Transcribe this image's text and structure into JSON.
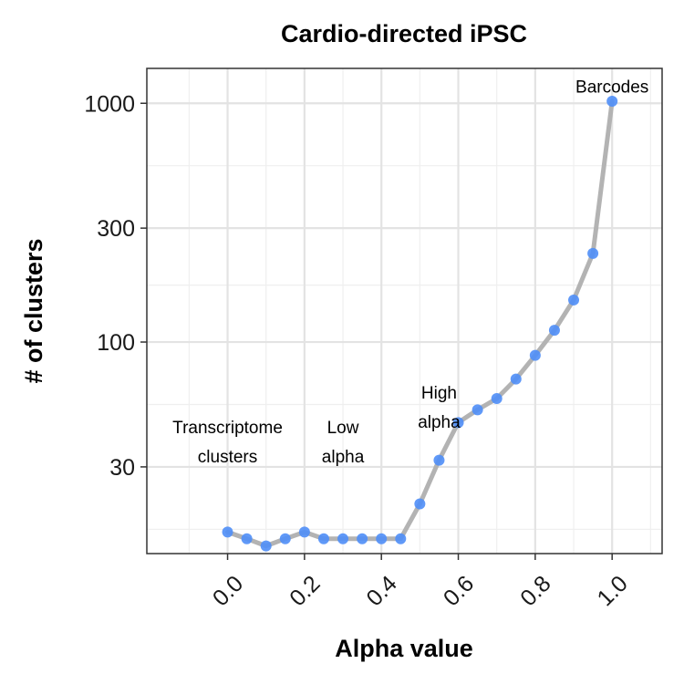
{
  "chart_data": {
    "type": "line",
    "title": "Cardio-directed iPSC",
    "xlabel": "Alpha value",
    "ylabel": "# of clusters",
    "y_scale": "log",
    "xlim": [
      -0.21,
      1.13
    ],
    "ylim": [
      13,
      1400
    ],
    "grid": true,
    "x_ticks": [
      0.0,
      0.2,
      0.4,
      0.6,
      0.8,
      1.0
    ],
    "x_tick_labels": [
      "0.0",
      "0.2",
      "0.4",
      "0.6",
      "0.8",
      "1.0"
    ],
    "y_ticks": [
      30,
      100,
      300,
      1000
    ],
    "y_tick_labels": [
      "30",
      "100",
      "300",
      "1000"
    ],
    "line_color": "#b3b3b3",
    "point_color": "#4f8ef7",
    "series": [
      {
        "x": [
          0.0,
          0.05,
          0.1,
          0.15,
          0.2,
          0.25,
          0.3,
          0.35,
          0.4,
          0.45,
          0.5,
          0.55,
          0.6,
          0.65,
          0.7,
          0.75,
          0.8,
          0.85,
          0.9,
          0.95,
          1.0
        ],
        "values": [
          16,
          15,
          14,
          15,
          16,
          15,
          15,
          15,
          15,
          15,
          21,
          32,
          46,
          52,
          58,
          70,
          88,
          112,
          150,
          235,
          1020
        ]
      }
    ],
    "annotations": [
      {
        "lines": [
          "Transcriptome",
          "clusters"
        ],
        "x": 0.0,
        "y": 38
      },
      {
        "lines": [
          "Low",
          "alpha"
        ],
        "x": 0.3,
        "y": 38
      },
      {
        "lines": [
          "High",
          "alpha"
        ],
        "x": 0.55,
        "y": 53
      },
      {
        "lines": [
          "Barcodes"
        ],
        "x": 1.0,
        "y": 1170
      }
    ]
  }
}
